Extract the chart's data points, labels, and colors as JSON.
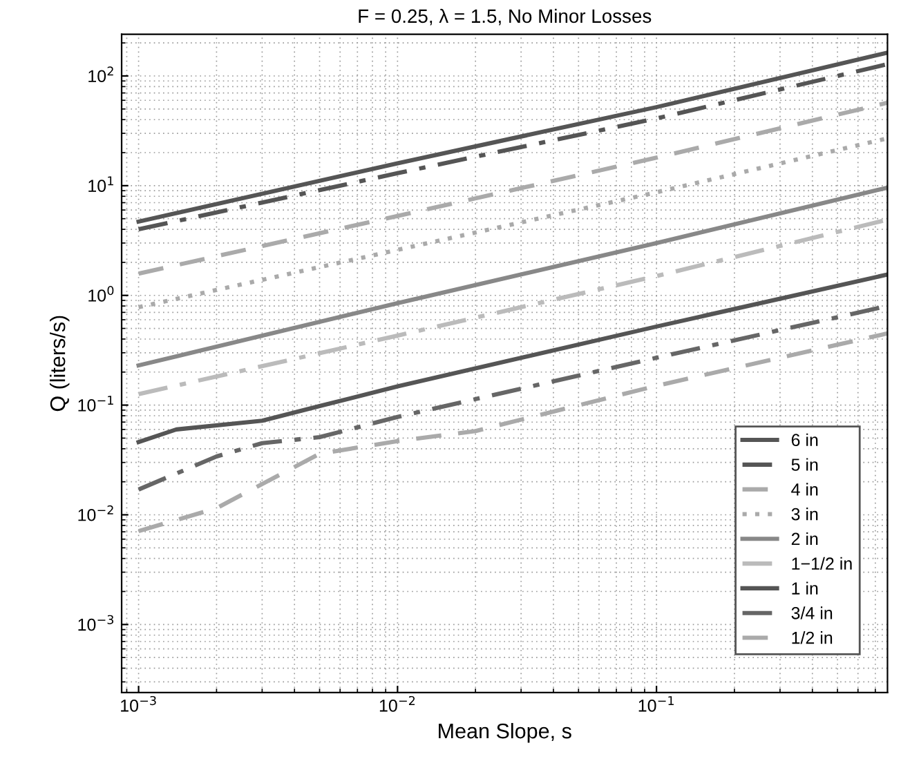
{
  "chart_data": {
    "type": "line",
    "title": "F = 0.25, λ = 1.5, No Minor Losses",
    "xlabel": "Mean Slope, s",
    "ylabel": "Q (liters/s)",
    "log": "xy",
    "grid": true,
    "legend": "bottom right",
    "xlim": [
      0.00086,
      0.78
    ],
    "ylim": [
      0.00024,
      240
    ],
    "xticks": [
      {
        "value": 0.001,
        "label": "10$^{−3}$"
      },
      {
        "value": 0.01,
        "label": "10$^{−2}$"
      },
      {
        "value": 0.1,
        "label": "10$^{−1}$"
      }
    ],
    "yticks": [
      {
        "value": 0.001,
        "label": "10$^{−3}$"
      },
      {
        "value": 0.01,
        "label": "10$^{−2}$"
      },
      {
        "value": 0.1,
        "label": "10$^{−1}$"
      },
      {
        "value": 1,
        "label": "10$^{0}$"
      },
      {
        "value": 10,
        "label": "10$^{1}$"
      },
      {
        "value": 100,
        "label": "10$^{2}$"
      }
    ],
    "series": [
      {
        "name": "6 in",
        "color": "#555555",
        "line_style": "solid",
        "x": [
          0.001,
          0.01,
          0.1,
          0.78
        ],
        "values": [
          4.7,
          16,
          52,
          163
        ]
      },
      {
        "name": "5 in",
        "color": "#555555",
        "line_style": "dashdot",
        "x": [
          0.001,
          0.01,
          0.1,
          0.78
        ],
        "values": [
          4.0,
          13,
          41,
          128
        ]
      },
      {
        "name": "4 in",
        "color": "#aaaaaa",
        "line_style": "dashed",
        "x": [
          0.001,
          0.01,
          0.1,
          0.78
        ],
        "values": [
          1.58,
          5.3,
          18,
          57
        ]
      },
      {
        "name": "3 in",
        "color": "#aaaaaa",
        "line_style": "dotted",
        "x": [
          0.001,
          0.01,
          0.1,
          0.78
        ],
        "values": [
          0.78,
          2.6,
          8.7,
          27
        ]
      },
      {
        "name": "2 in",
        "color": "#888888",
        "line_style": "solid",
        "x": [
          0.001,
          0.01,
          0.1,
          0.78
        ],
        "values": [
          0.23,
          0.85,
          3.0,
          9.6
        ]
      },
      {
        "name": "1−1/2 in",
        "color": "#bbbbbb",
        "line_style": "dashdot",
        "x": [
          0.001,
          0.01,
          0.1,
          0.78
        ],
        "values": [
          0.126,
          0.43,
          1.5,
          4.9
        ]
      },
      {
        "name": "1 in",
        "color": "#555555",
        "line_style": "solid",
        "x": [
          0.001,
          0.0014,
          0.003,
          0.005,
          0.01,
          0.1,
          0.78
        ],
        "values": [
          0.046,
          0.06,
          0.072,
          0.098,
          0.148,
          0.52,
          1.55
        ]
      },
      {
        "name": "3/4 in",
        "color": "#666666",
        "line_style": "dashdot",
        "x": [
          0.001,
          0.002,
          0.003,
          0.005,
          0.01,
          0.1,
          0.78
        ],
        "values": [
          0.017,
          0.034,
          0.045,
          0.051,
          0.078,
          0.27,
          0.8
        ]
      },
      {
        "name": "1/2 in",
        "color": "#aaaaaa",
        "line_style": "dashed",
        "x": [
          0.001,
          0.002,
          0.005,
          0.01,
          0.02,
          0.1,
          0.78
        ],
        "values": [
          0.0071,
          0.0115,
          0.036,
          0.047,
          0.058,
          0.15,
          0.45
        ]
      }
    ]
  }
}
